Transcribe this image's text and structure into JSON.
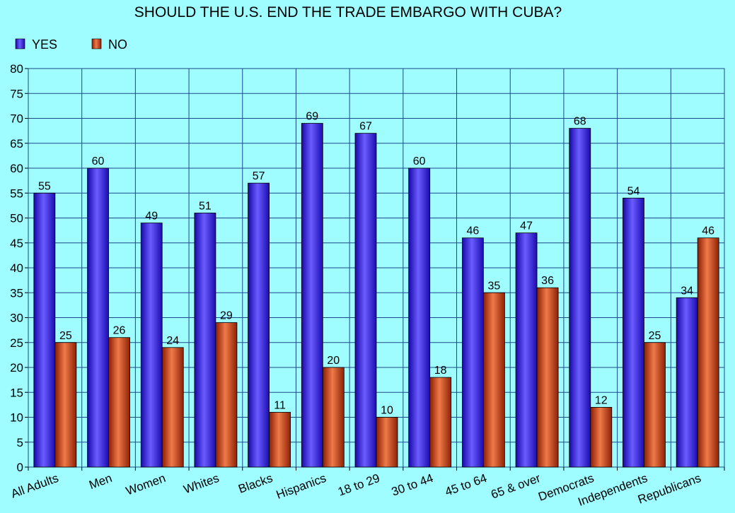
{
  "chart_data": {
    "type": "bar",
    "title": "SHOULD THE U.S. END THE TRADE EMBARGO WITH CUBA?",
    "xlabel": "",
    "ylabel": "",
    "ylim": [
      0,
      80
    ],
    "yticks": [
      0,
      5,
      10,
      15,
      20,
      25,
      30,
      35,
      40,
      45,
      50,
      55,
      60,
      65,
      70,
      75,
      80
    ],
    "grid": true,
    "legend_position": "top-left",
    "categories": [
      "All Adults",
      "Men",
      "Women",
      "Whites",
      "Blacks",
      "Hispanics",
      "18 to 29",
      "30 to 44",
      "45 to 64",
      "65 & over",
      "Democrats",
      "Independents",
      "Republicans"
    ],
    "series": [
      {
        "name": "YES",
        "color": "#3a1cf0",
        "values": [
          55,
          60,
          49,
          51,
          57,
          69,
          67,
          60,
          46,
          47,
          68,
          54,
          34
        ]
      },
      {
        "name": "NO",
        "color": "#c03a10",
        "values": [
          25,
          26,
          24,
          29,
          11,
          20,
          10,
          18,
          35,
          36,
          12,
          25,
          46
        ]
      }
    ],
    "colors": {
      "background": "#9ffcff",
      "grid": "#1a4a8a"
    }
  }
}
